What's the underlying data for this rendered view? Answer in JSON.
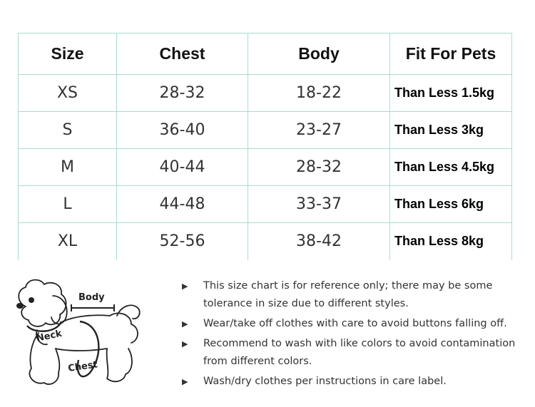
{
  "table": {
    "headers": [
      "Size",
      "Chest",
      "Body",
      "Fit For Pets"
    ],
    "rows": [
      [
        "XS",
        "28-32",
        "18-22",
        "Than Less 1.5kg"
      ],
      [
        "S",
        "36-40",
        "23-27",
        "Than Less 3kg"
      ],
      [
        "M",
        "40-44",
        "28-32",
        "Than Less 4.5kg"
      ],
      [
        "L",
        "44-48",
        "33-37",
        "Than Less 6kg"
      ],
      [
        "XL",
        "52-56",
        "38-42",
        "Than Less 8kg"
      ]
    ]
  },
  "diagram": {
    "body_label": "Body",
    "neck_label": "Neck",
    "chest_label": "Chest"
  },
  "notes": [
    "This size chart is for reference only; there may be some tolerance in size due to different styles.",
    "Wear/take off clothes with care to avoid buttons falling off.",
    "Recommend to wash with like colors to avoid contamination from different colors.",
    "Wash/dry clothes per instructions in care label."
  ],
  "bullet_glyph": "▶",
  "colors": {
    "table_border": "#a8dcd1"
  }
}
